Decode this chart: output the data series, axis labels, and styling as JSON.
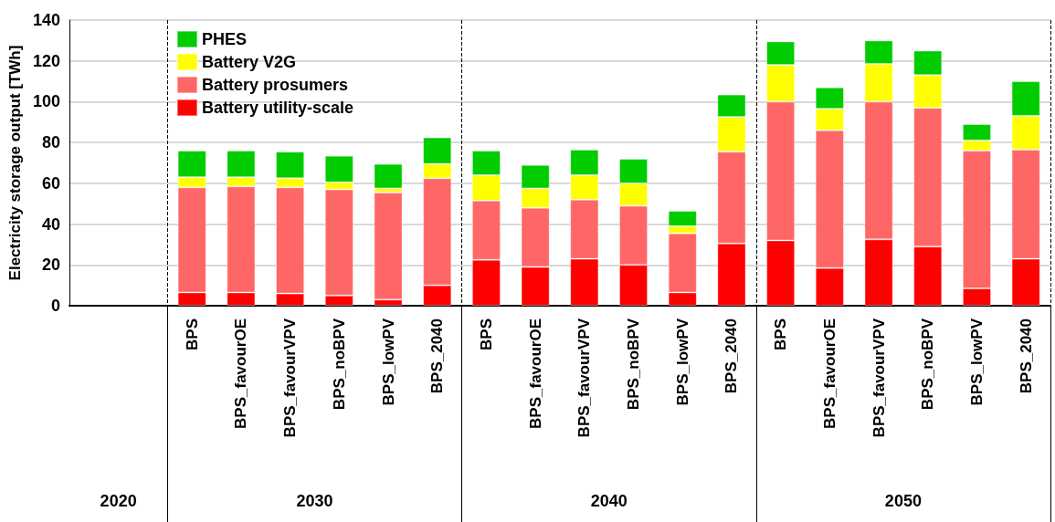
{
  "chart_data": {
    "type": "bar",
    "stacked": true,
    "ylabel": "Electricity storage output [TWh]",
    "categories": [
      null,
      null,
      "BPS",
      "BPS_favourOE",
      "BPS_favourVPV",
      "BPS_noBPV",
      "BPS_lowPV",
      "BPS_2040",
      "BPS",
      "BPS_favourOE",
      "BPS_favourVPV",
      "BPS_noBPV",
      "BPS_lowPV",
      "BPS_2040",
      "BPS",
      "BPS_favourOE",
      "BPS_favourVPV",
      "BPS_noBPV",
      "BPS_lowPV",
      "BPS_2040"
    ],
    "series": [
      {
        "name": "Battery utility-scale",
        "color": "#ff0000",
        "values": [
          null,
          null,
          6.5,
          6.5,
          6,
          5,
          3,
          10,
          22.5,
          19,
          23,
          20,
          6.5,
          30.5,
          32,
          18.5,
          32.5,
          29,
          8.5,
          23
        ]
      },
      {
        "name": "Battery prosumers",
        "color": "#ff6666",
        "values": [
          null,
          null,
          51.5,
          52,
          52,
          52,
          52.5,
          52.5,
          29,
          29,
          29,
          29,
          29,
          45,
          68,
          67.5,
          67.5,
          68,
          67.5,
          53.5
        ]
      },
      {
        "name": "Battery V2G",
        "color": "#ffff00",
        "values": [
          null,
          null,
          5,
          4.5,
          4.5,
          3.5,
          2,
          7,
          12.5,
          9.5,
          12,
          11,
          3.5,
          17,
          18,
          10.5,
          18.5,
          16,
          5,
          16.5
        ]
      },
      {
        "name": "PHES",
        "color": "#00cc00",
        "values": [
          null,
          null,
          13,
          13,
          13,
          13,
          12,
          13,
          12,
          11.5,
          12.5,
          12,
          7.5,
          11,
          11.5,
          10.5,
          11.5,
          12,
          8,
          17
        ]
      }
    ],
    "ylim": [
      0,
      140
    ],
    "yticks": [
      0,
      20,
      40,
      60,
      80,
      100,
      120,
      140
    ],
    "grid": "y",
    "legend": "top left",
    "annotations": [
      "2020",
      "2030",
      "2040",
      "2050"
    ]
  }
}
